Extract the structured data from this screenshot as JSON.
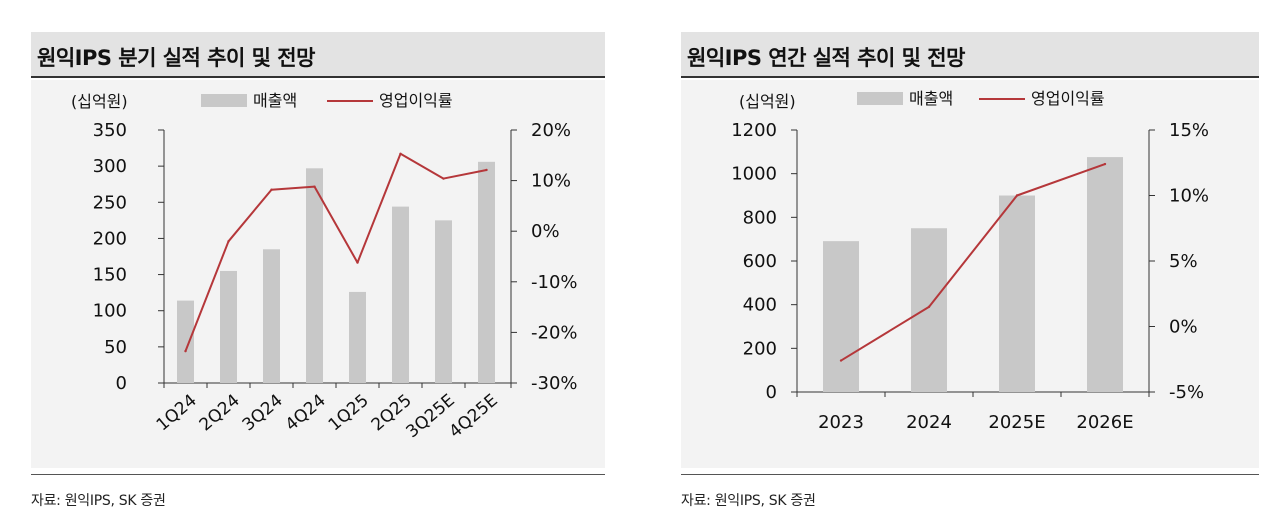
{
  "colors": {
    "bar": "#c8c8c8",
    "line": "#b5373a",
    "axis": "#333333"
  },
  "panels": [
    {
      "title": "원익IPS 분기 실적 추이 및 전망",
      "source": "자료: 원익IPS, SK 증권",
      "chart_data": {
        "type": "bar",
        "unit_label": "(십억원)",
        "categories": [
          "1Q24",
          "2Q24",
          "3Q24",
          "4Q24",
          "1Q25",
          "2Q25",
          "3Q25E",
          "4Q25E"
        ],
        "series": [
          {
            "name": "매출액",
            "type": "bar",
            "axis": "left",
            "values": [
              114,
              155,
              185,
              297,
              126,
              244,
              225,
              306
            ]
          },
          {
            "name": "영업이익률",
            "type": "line",
            "axis": "right",
            "values": [
              -23.7,
              -2.0,
              8.2,
              8.8,
              -6.2,
              15.3,
              10.4,
              12.1
            ]
          }
        ],
        "y_left": {
          "min": 0,
          "max": 350,
          "ticks": [
            0,
            50,
            100,
            150,
            200,
            250,
            300,
            350
          ]
        },
        "y_right": {
          "min": -30,
          "max": 20,
          "ticks": [
            -30,
            -20,
            -10,
            0,
            10,
            20
          ],
          "tick_labels": [
            "-30%",
            "-20%",
            "-10%",
            "0%",
            "10%",
            "20%"
          ]
        },
        "legend": "top",
        "xtick_rotation": "diagonal"
      }
    },
    {
      "title": "원익IPS 연간 실적 추이 및 전망",
      "source": "자료: 원익IPS, SK 증권",
      "chart_data": {
        "type": "bar",
        "unit_label": "(십억원)",
        "categories": [
          "2023",
          "2024",
          "2025E",
          "2026E"
        ],
        "series": [
          {
            "name": "매출액",
            "type": "bar",
            "axis": "left",
            "values": [
              691,
              750,
              900,
              1076
            ]
          },
          {
            "name": "영업이익률",
            "type": "line",
            "axis": "right",
            "values": [
              -2.6,
              1.5,
              10.0,
              12.4
            ]
          }
        ],
        "y_left": {
          "min": 0,
          "max": 1200,
          "ticks": [
            0,
            200,
            400,
            600,
            800,
            1000,
            1200
          ]
        },
        "y_right": {
          "min": -5,
          "max": 15,
          "ticks": [
            -5,
            0,
            5,
            10,
            15
          ],
          "tick_labels": [
            "-5%",
            "0%",
            "5%",
            "10%",
            "15%"
          ]
        },
        "legend": "top",
        "xtick_rotation": "none"
      }
    }
  ]
}
